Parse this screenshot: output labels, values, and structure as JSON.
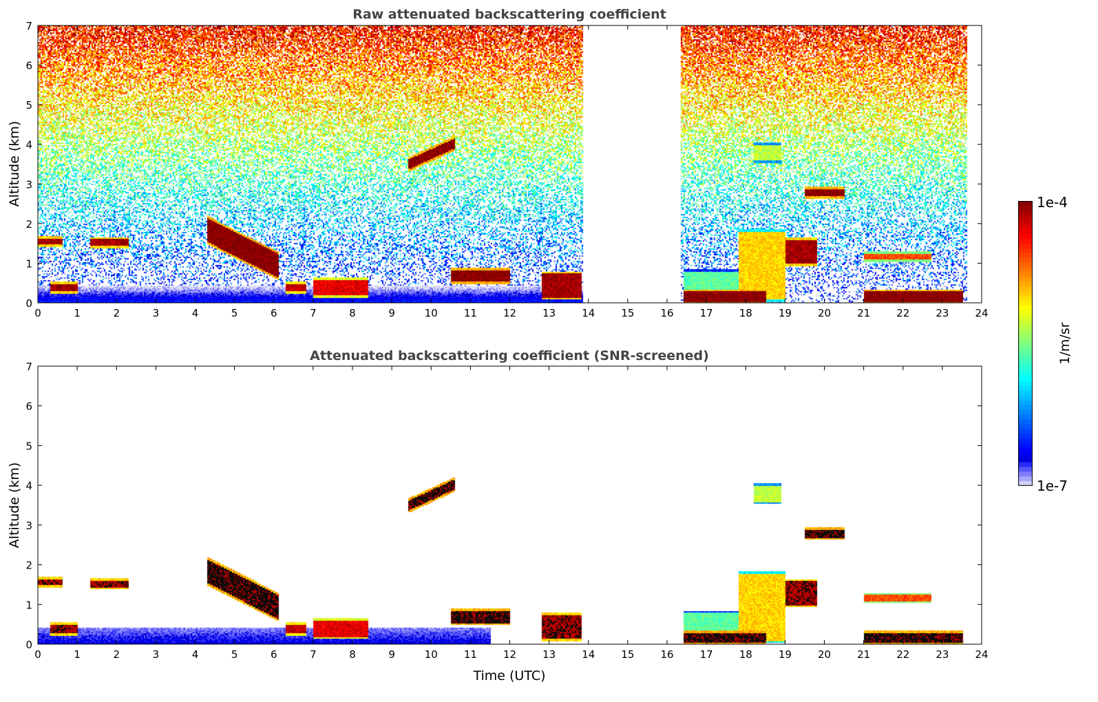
{
  "chart_data": [
    {
      "type": "heatmap",
      "title": "Raw attenuated backscattering coefficient",
      "xlabel": "",
      "ylabel": "Altitude (km)",
      "xlim": [
        0,
        24
      ],
      "ylim": [
        0,
        7
      ],
      "xticks": [
        "0",
        "1",
        "2",
        "3",
        "4",
        "5",
        "6",
        "7",
        "8",
        "9",
        "10",
        "11",
        "12",
        "13",
        "14",
        "15",
        "16",
        "17",
        "18",
        "19",
        "20",
        "21",
        "22",
        "23",
        "24"
      ],
      "yticks": [
        "0",
        "1",
        "2",
        "3",
        "4",
        "5",
        "6",
        "7"
      ],
      "screened": false,
      "data_gap_hours": [
        13.85,
        16.35
      ],
      "layers": [
        {
          "t": [
            0,
            0.6
          ],
          "z": [
            1.5,
            1.65
          ],
          "log": -4.1
        },
        {
          "t": [
            1.3,
            2.3
          ],
          "z": [
            1.45,
            1.62
          ],
          "log": -4.1
        },
        {
          "t": [
            4.3,
            6.1
          ],
          "z": [
            1.1,
            1.7
          ],
          "log": -4.0,
          "slope": -0.5
        },
        {
          "t": [
            9.4,
            10.6
          ],
          "z": [
            3.65,
            3.9
          ],
          "log": -4.0,
          "slope": 0.45
        },
        {
          "t": [
            0.3,
            1.0
          ],
          "z": [
            0.3,
            0.5
          ],
          "log": -4.1
        },
        {
          "t": [
            6.3,
            6.8
          ],
          "z": [
            0.3,
            0.5
          ],
          "log": -4.2
        },
        {
          "t": [
            7.0,
            8.4
          ],
          "z": [
            0.2,
            0.6
          ],
          "log": -4.3
        },
        {
          "t": [
            10.5,
            12.0
          ],
          "z": [
            0.55,
            0.85
          ],
          "log": -4.0
        },
        {
          "t": [
            12.8,
            13.8
          ],
          "z": [
            0.15,
            0.75
          ],
          "log": -4.1
        },
        {
          "t": [
            19.5,
            20.5
          ],
          "z": [
            2.7,
            2.9
          ],
          "log": -4.0
        },
        {
          "t": [
            19.0,
            19.8
          ],
          "z": [
            1.0,
            1.6
          ],
          "log": -4.1
        },
        {
          "t": [
            16.4,
            18.5
          ],
          "z": [
            0.05,
            0.3
          ],
          "log": -4.0
        },
        {
          "t": [
            21.0,
            23.5
          ],
          "z": [
            0.05,
            0.3
          ],
          "log": -4.0
        },
        {
          "t": [
            21.0,
            22.7
          ],
          "z": [
            1.1,
            1.25
          ],
          "log": -4.6
        },
        {
          "t": [
            17.8,
            19.0
          ],
          "z": [
            0.1,
            1.8
          ],
          "log": -5.0
        },
        {
          "t": [
            16.4,
            18.0
          ],
          "z": [
            0.0,
            0.8
          ],
          "log": -5.6
        },
        {
          "t": [
            18.2,
            18.9
          ],
          "z": [
            3.6,
            4.0
          ],
          "log": -5.3
        }
      ]
    },
    {
      "type": "heatmap",
      "title": "Attenuated backscattering coefficient (SNR-screened)",
      "xlabel": "Time (UTC)",
      "ylabel": "Altitude (km)",
      "xlim": [
        0,
        24
      ],
      "ylim": [
        0,
        7
      ],
      "xticks": [
        "0",
        "1",
        "2",
        "3",
        "4",
        "5",
        "6",
        "7",
        "8",
        "9",
        "10",
        "11",
        "12",
        "13",
        "14",
        "15",
        "16",
        "17",
        "18",
        "19",
        "20",
        "21",
        "22",
        "23",
        "24"
      ],
      "yticks": [
        "0",
        "1",
        "2",
        "3",
        "4",
        "5",
        "6",
        "7"
      ],
      "screened": true,
      "data_gap_hours": [
        13.85,
        16.35
      ]
    }
  ],
  "colorbar": {
    "label": "1/m/sr",
    "max_label": "1e-4",
    "min_label": "1e-7",
    "range_log10": [
      -7,
      -4
    ]
  }
}
